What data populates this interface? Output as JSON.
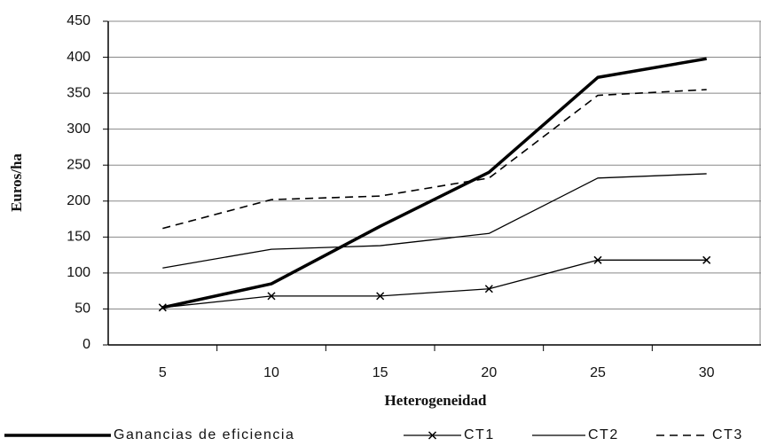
{
  "chart_data": {
    "type": "line",
    "x_label": "Heterogeneidad",
    "y_label": "Euros/ha",
    "categories": [
      "5",
      "10",
      "15",
      "20",
      "25",
      "30"
    ],
    "series": [
      {
        "name": "Ganancias de eficiencia",
        "color": "#000000",
        "line_width": 3.5,
        "dash": "none",
        "marker": "none",
        "values": [
          52,
          85,
          165,
          240,
          372,
          398
        ]
      },
      {
        "name": "CT1",
        "color": "#000000",
        "line_width": 1.3,
        "dash": "none",
        "marker": "x",
        "values": [
          52,
          68,
          68,
          78,
          118,
          118
        ]
      },
      {
        "name": "CT2",
        "color": "#000000",
        "line_width": 1.3,
        "dash": "none",
        "marker": "none",
        "values": [
          107,
          133,
          138,
          155,
          232,
          238
        ]
      },
      {
        "name": "CT3",
        "color": "#000000",
        "line_width": 1.6,
        "dash": "9 6",
        "marker": "none",
        "values": [
          162,
          202,
          207,
          232,
          347,
          355
        ]
      }
    ],
    "ylim": [
      0,
      450
    ],
    "yticks": [
      0,
      50,
      100,
      150,
      200,
      250,
      300,
      350,
      400,
      450
    ],
    "grid": true,
    "legend": "bottom"
  }
}
